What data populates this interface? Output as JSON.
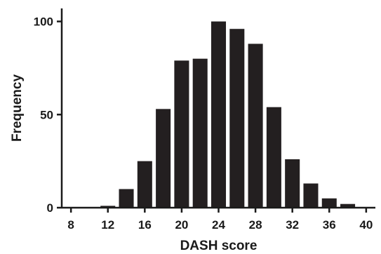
{
  "chart_data": {
    "type": "bar",
    "xlabel": "DASH score",
    "ylabel": "Frequency",
    "x_ticks": [
      8,
      12,
      16,
      20,
      24,
      28,
      32,
      36,
      40
    ],
    "y_ticks": [
      0,
      50,
      100
    ],
    "xlim": [
      7,
      41
    ],
    "ylim": [
      0,
      107
    ],
    "grid": false,
    "bar_width": 1.6,
    "bars": [
      {
        "x": 12,
        "value": 1
      },
      {
        "x": 14,
        "value": 10
      },
      {
        "x": 16,
        "value": 25
      },
      {
        "x": 18,
        "value": 53
      },
      {
        "x": 20,
        "value": 79
      },
      {
        "x": 22,
        "value": 80
      },
      {
        "x": 24,
        "value": 100
      },
      {
        "x": 26,
        "value": 96
      },
      {
        "x": 28,
        "value": 88
      },
      {
        "x": 30,
        "value": 54
      },
      {
        "x": 32,
        "value": 26
      },
      {
        "x": 34,
        "value": 13
      },
      {
        "x": 36,
        "value": 5
      },
      {
        "x": 38,
        "value": 2
      }
    ],
    "colors": {
      "bar": "#231f20",
      "axis": "#1a1a1a"
    }
  }
}
